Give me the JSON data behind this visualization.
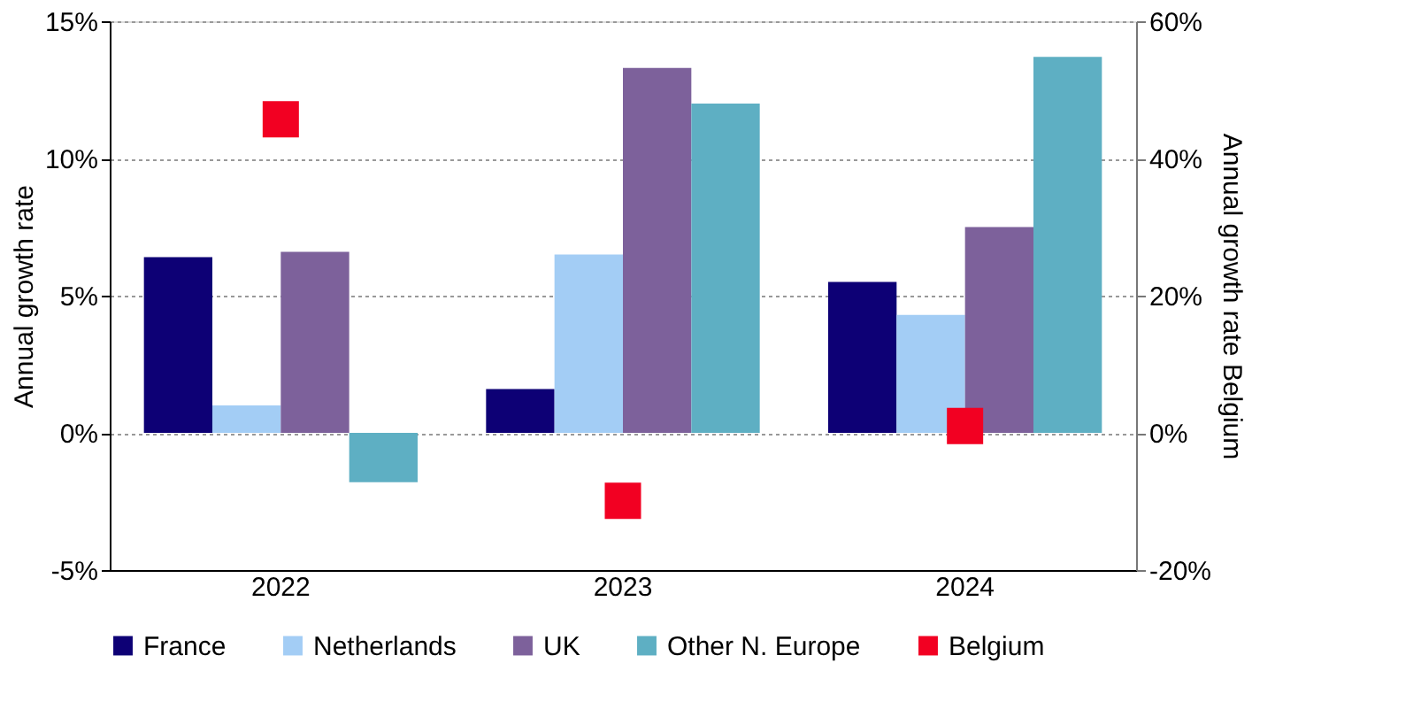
{
  "chart_data": {
    "type": "bar",
    "categories": [
      "2022",
      "2023",
      "2024"
    ],
    "ylabel": "Annual growth rate",
    "y2label": "Annual growth rate Belgium",
    "series": [
      {
        "name": "France",
        "color": "#0d0075",
        "values": [
          6.4,
          1.6,
          5.5
        ]
      },
      {
        "name": "Netherlands",
        "color": "#a3cdf5",
        "values": [
          1.0,
          6.5,
          4.3
        ]
      },
      {
        "name": "UK",
        "color": "#7d619b",
        "values": [
          6.6,
          13.3,
          7.5
        ]
      },
      {
        "name": "Other N. Europe",
        "color": "#5eafc3",
        "values": [
          -1.8,
          12.0,
          13.7
        ]
      },
      {
        "name": "Belgium",
        "color": "#f20022",
        "type": "scatter",
        "axis": "y2",
        "marker": "square",
        "values": [
          45.7,
          -9.9,
          1.0
        ]
      }
    ],
    "ylim": [
      -5,
      15
    ],
    "yticks": [
      {
        "value": -5,
        "label": "-5%"
      },
      {
        "value": 0,
        "label": "0%"
      },
      {
        "value": 5,
        "label": "5%"
      },
      {
        "value": 10,
        "label": "10%"
      },
      {
        "value": 15,
        "label": "15%"
      }
    ],
    "y2lim": [
      -20,
      60
    ],
    "y2ticks": [
      {
        "value": -20,
        "label": "-20%"
      },
      {
        "value": 0,
        "label": "0%"
      },
      {
        "value": 20,
        "label": "20%"
      },
      {
        "value": 40,
        "label": "40%"
      },
      {
        "value": 60,
        "label": "60%"
      }
    ],
    "grid": "y",
    "legend": "bottom"
  }
}
